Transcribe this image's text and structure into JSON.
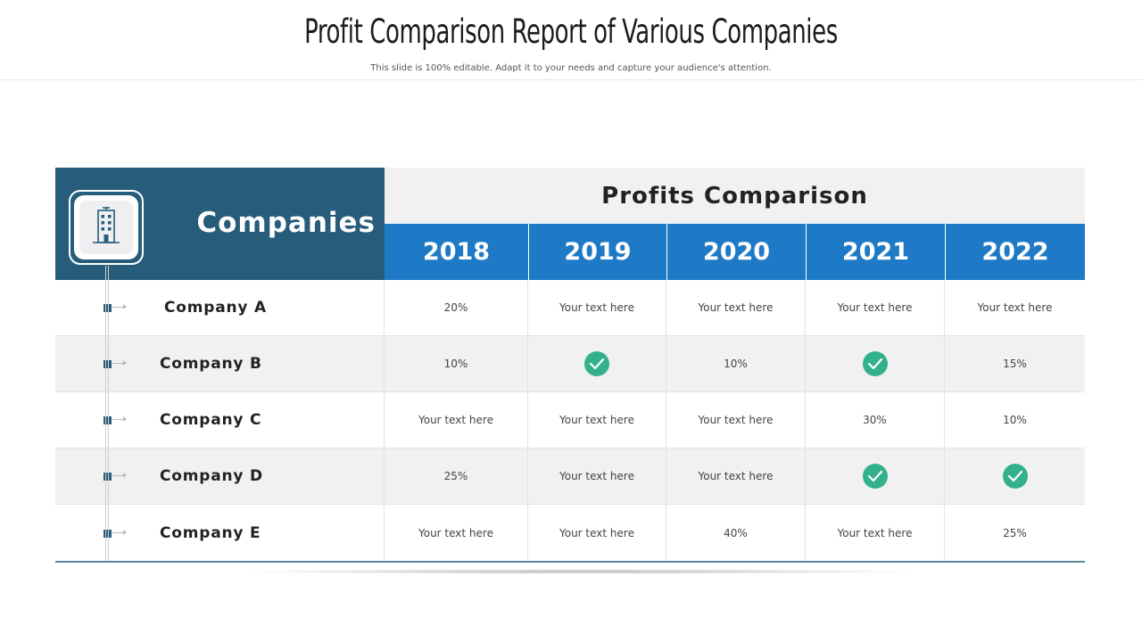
{
  "header": {
    "title": "Profit Comparison Report of Various Companies",
    "subtitle": "This slide is 100% editable. Adapt it to your needs and capture  your audience's attention."
  },
  "table": {
    "companies_label": "Companies",
    "companies_icon": "building-icon",
    "group_header": "Profits Comparison",
    "years": [
      "2018",
      "2019",
      "2020",
      "2021",
      "2022"
    ],
    "rows": [
      {
        "company": "Company A",
        "cells": [
          "20%",
          "Your text here",
          "Your text here",
          "Your text here",
          "Your text here"
        ]
      },
      {
        "company": "Company B",
        "cells": [
          "10%",
          "check",
          "10%",
          "check",
          "15%"
        ]
      },
      {
        "company": "Company C",
        "cells": [
          "Your text here",
          "Your text here",
          "Your text here",
          "30%",
          "10%"
        ]
      },
      {
        "company": "Company D",
        "cells": [
          "25%",
          "Your text here",
          "Your text here",
          "check",
          "check"
        ]
      },
      {
        "company": "Company E",
        "cells": [
          "Your text here",
          "Your text here",
          "40%",
          "Your text here",
          "25%"
        ]
      }
    ]
  },
  "colors": {
    "panel": "#275d7b",
    "year_header": "#1e7ac6",
    "check": "#33b18d",
    "row_alt": "#f1f1f1"
  }
}
